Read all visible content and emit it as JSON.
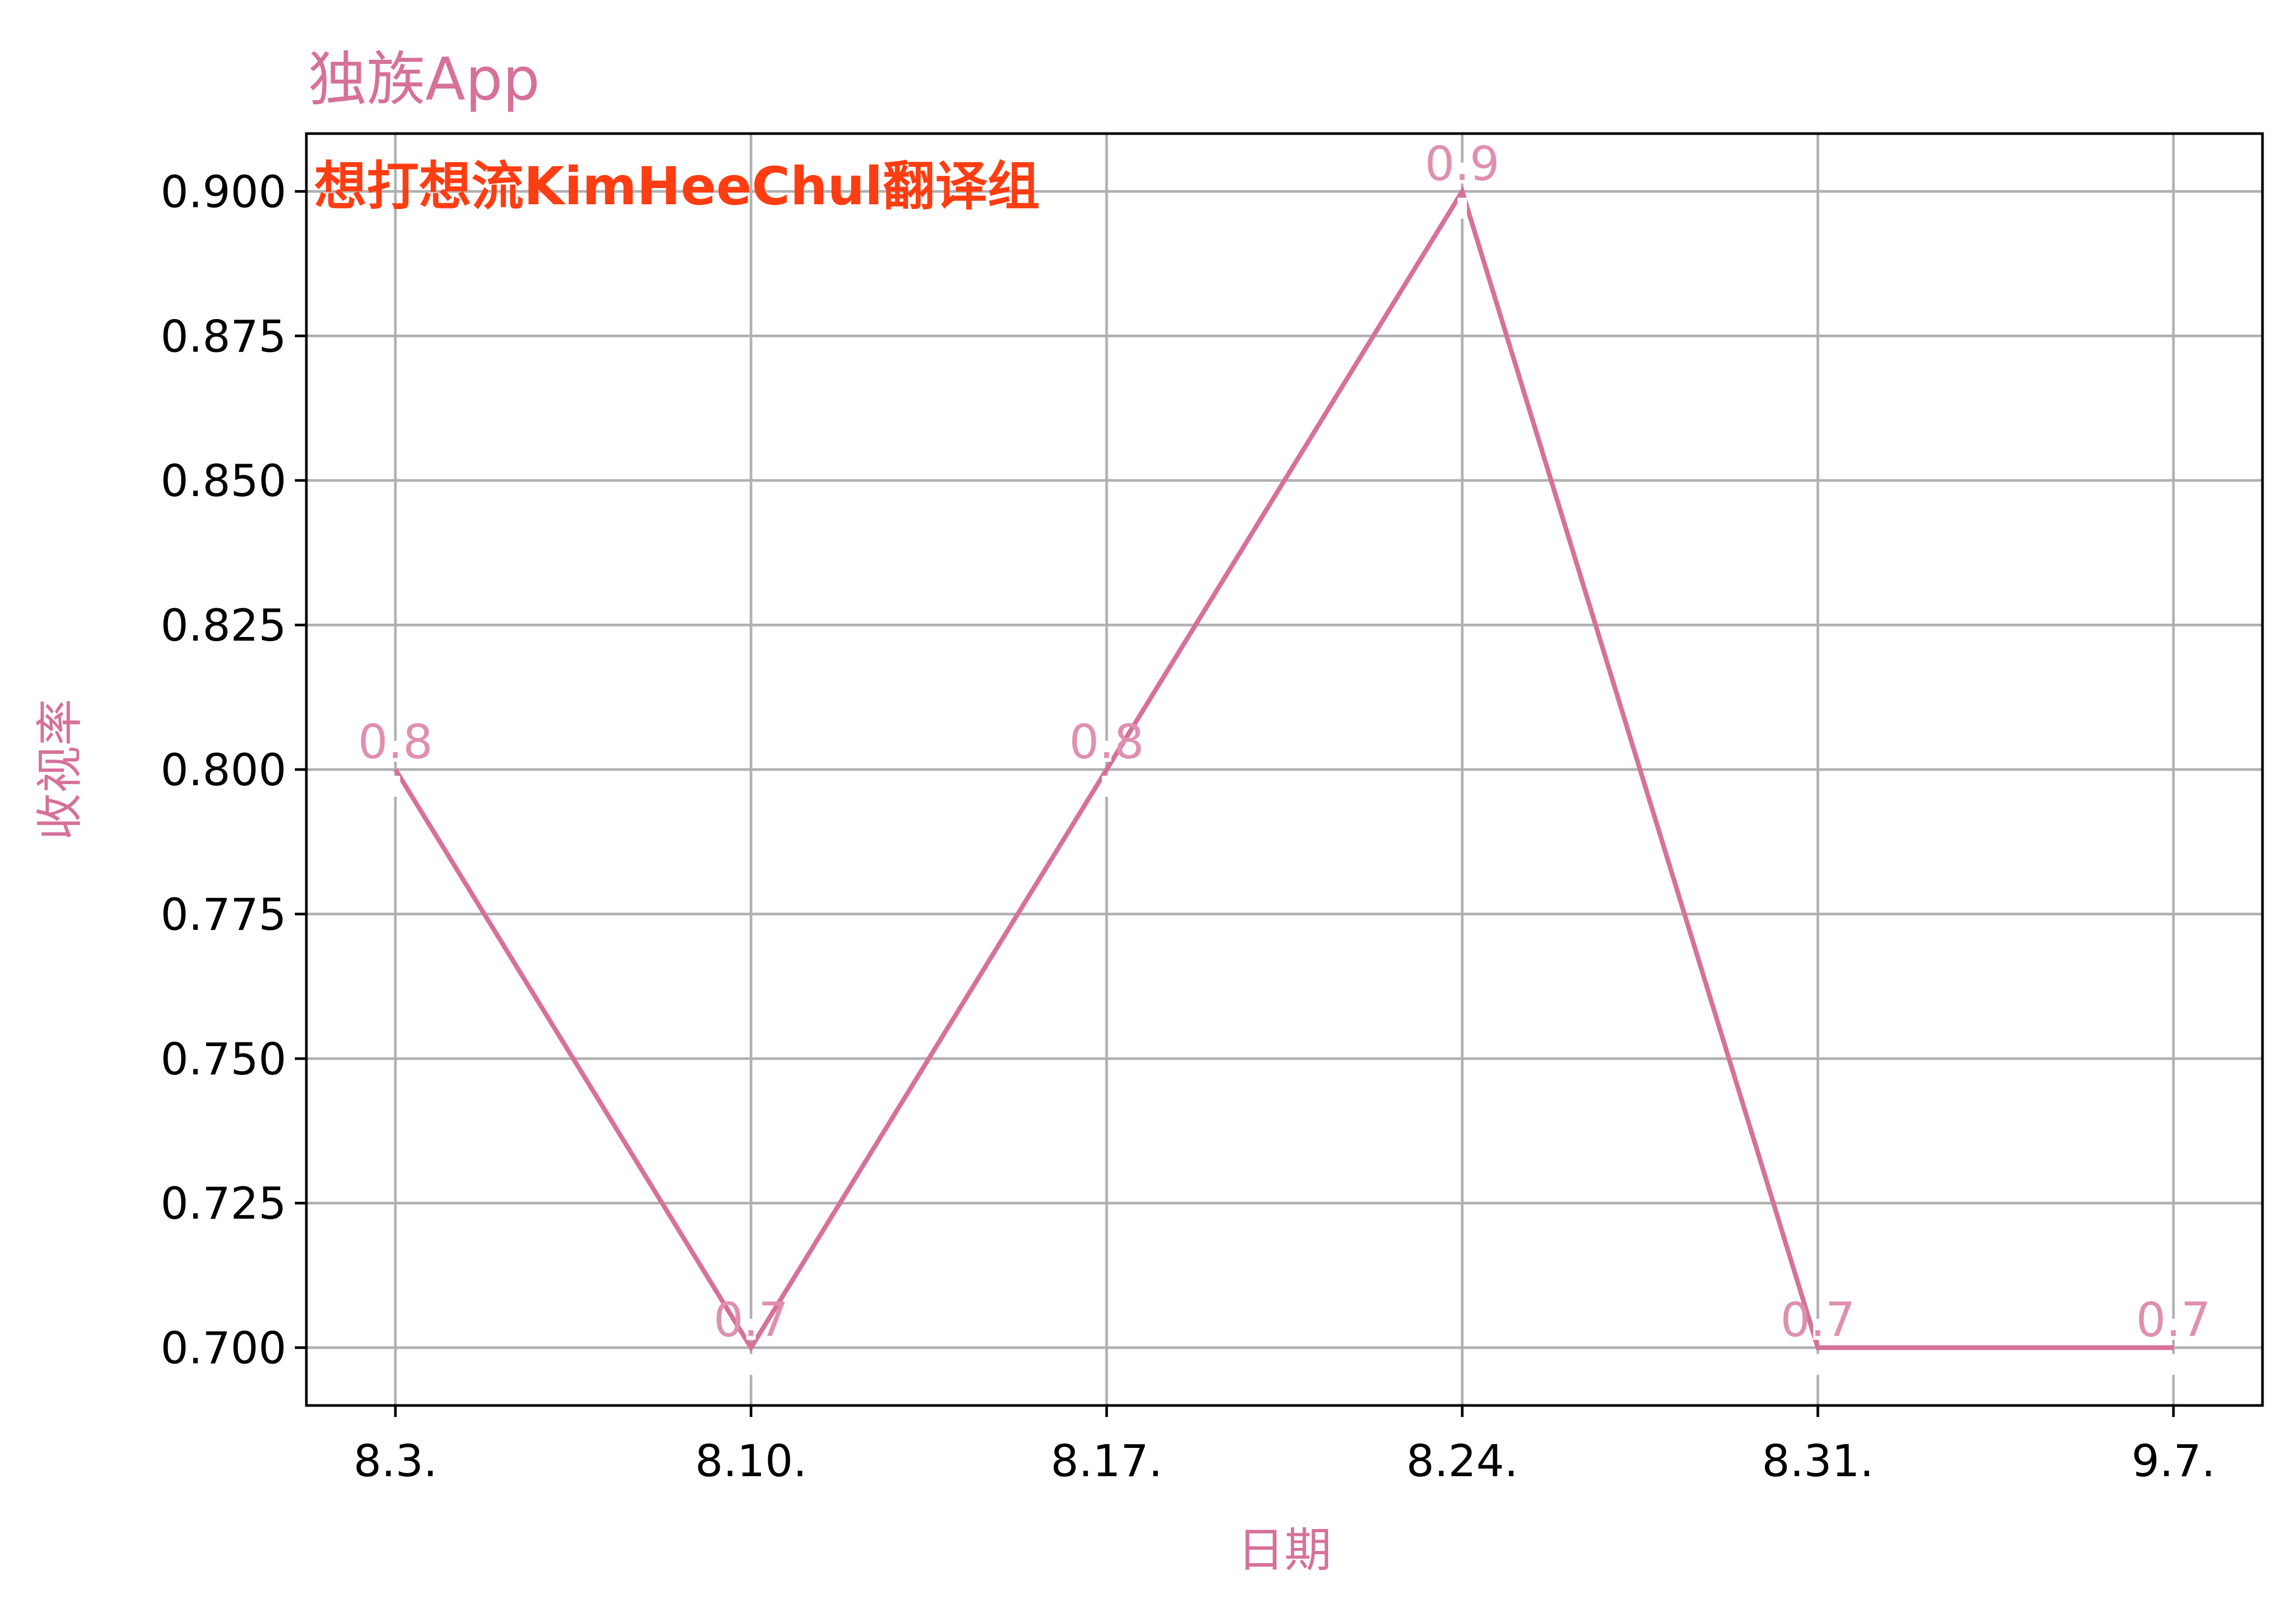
{
  "colors": {
    "accent": "#d6719a",
    "data_label": "#e08fb0",
    "annotation": "#ff3d12",
    "grid": "#b0b0b0",
    "axis": "#000000"
  },
  "chart_data": {
    "type": "line",
    "title": "独族App",
    "xlabel": "日期",
    "ylabel": "收视率",
    "annotation": "想打想流KimHeeChul翻译组",
    "categories": [
      "8.3.",
      "8.10.",
      "8.17.",
      "8.24.",
      "8.31.",
      "9.7."
    ],
    "series": [
      {
        "values": [
          0.8,
          0.7,
          0.8,
          0.9,
          0.7,
          0.7
        ]
      }
    ],
    "data_labels": [
      "0.8",
      "0.7",
      "0.8",
      "0.9",
      "0.7",
      "0.7"
    ],
    "yticks": [
      "0.700",
      "0.725",
      "0.750",
      "0.775",
      "0.800",
      "0.825",
      "0.850",
      "0.875",
      "0.900"
    ],
    "ylim": [
      0.69,
      0.91
    ],
    "grid": true,
    "legend": "none"
  }
}
